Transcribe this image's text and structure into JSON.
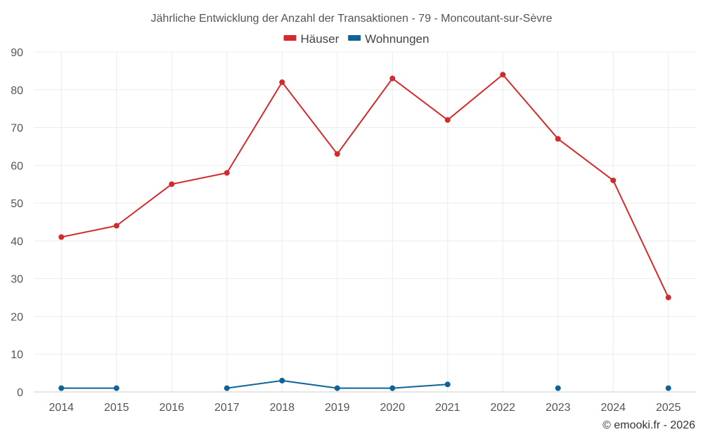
{
  "chart_data": {
    "type": "line",
    "title": "Jährliche Entwicklung der Anzahl der Transaktionen - 79 - Moncoutant-sur-Sèvre",
    "categories": [
      "2014",
      "2015",
      "2016",
      "2017",
      "2018",
      "2019",
      "2020",
      "2021",
      "2022",
      "2023",
      "2024",
      "2025"
    ],
    "ylim": [
      0,
      90
    ],
    "yticks": [
      "0",
      "10",
      "20",
      "30",
      "40",
      "50",
      "60",
      "70",
      "80",
      "90"
    ],
    "grid": true,
    "legend_position": "top-center",
    "series": [
      {
        "name": "Häuser",
        "color": "#d42a2a",
        "values": [
          41,
          44,
          55,
          58,
          82,
          63,
          83,
          72,
          84,
          67,
          56,
          25
        ]
      },
      {
        "name": "Wohnungen",
        "color": "#0f6398",
        "values": [
          1,
          1,
          null,
          1,
          3,
          1,
          1,
          2,
          null,
          1,
          null,
          1
        ]
      }
    ]
  },
  "credit": "© emooki.fr - 2026"
}
